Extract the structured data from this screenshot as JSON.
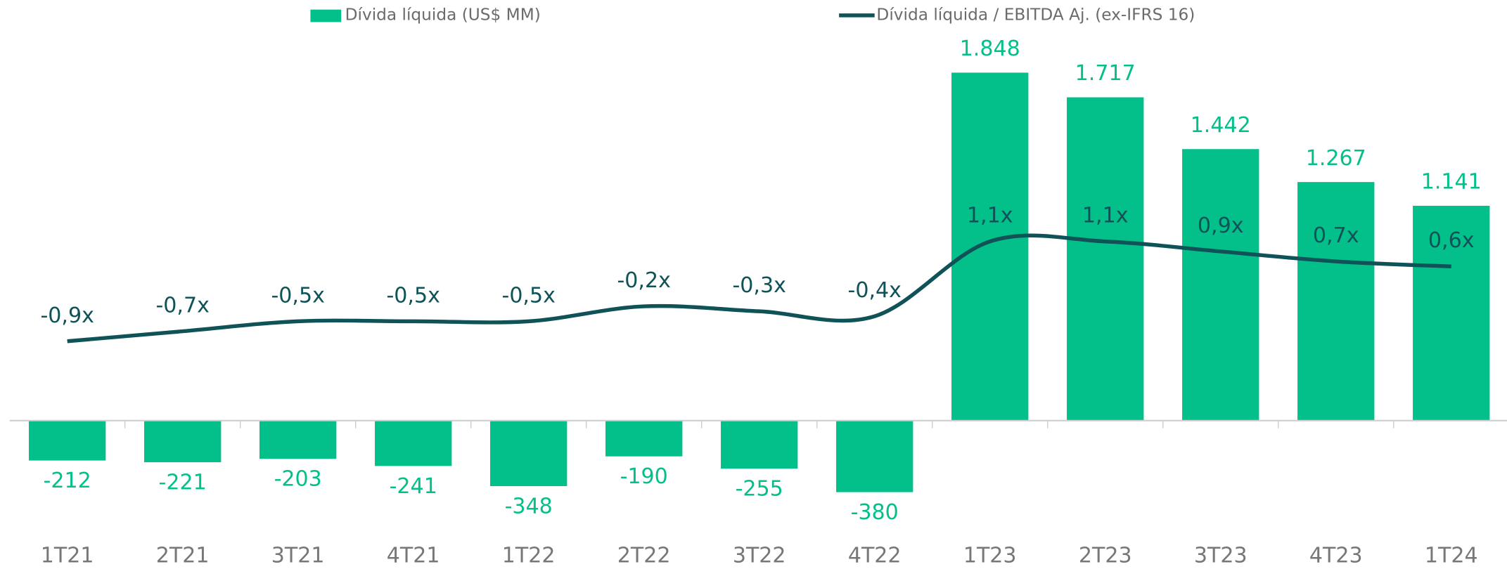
{
  "chart_data": {
    "type": "bar",
    "categories": [
      "1T21",
      "2T21",
      "3T21",
      "4T21",
      "1T22",
      "2T22",
      "3T22",
      "4T22",
      "1T23",
      "2T23",
      "3T23",
      "4T23",
      "1T24"
    ],
    "series": [
      {
        "name": "Dívida líquida (US$ MM)",
        "type": "bar",
        "color": "#03c08a",
        "values": [
          -212,
          -221,
          -203,
          -241,
          -348,
          -190,
          -255,
          -380,
          1848,
          1717,
          1442,
          1267,
          1141
        ],
        "value_labels": [
          "-212",
          "-221",
          "-203",
          "-241",
          "-348",
          "-190",
          "-255",
          "-380",
          "1.848",
          "1.717",
          "1.442",
          "1.267",
          "1.141"
        ]
      },
      {
        "name": "Dívida líquida / EBITDA Aj. (ex-IFRS 16)",
        "type": "line",
        "color": "#0f5257",
        "axis": "y2",
        "values": [
          -0.9,
          -0.7,
          -0.5,
          -0.5,
          -0.5,
          -0.2,
          -0.3,
          -0.4,
          1.1,
          1.1,
          0.9,
          0.7,
          0.6
        ],
        "value_labels": [
          "-0,9x",
          "-0,7x",
          "-0,5x",
          "-0,5x",
          "-0,5x",
          "-0,2x",
          "-0,3x",
          "-0,4x",
          "1,1x",
          "1,1x",
          "0,9x",
          "0,7x",
          "0,6x"
        ]
      }
    ],
    "ylim": [
      -620,
      2030
    ],
    "y2lim": [
      -4.83,
      5.17
    ]
  }
}
